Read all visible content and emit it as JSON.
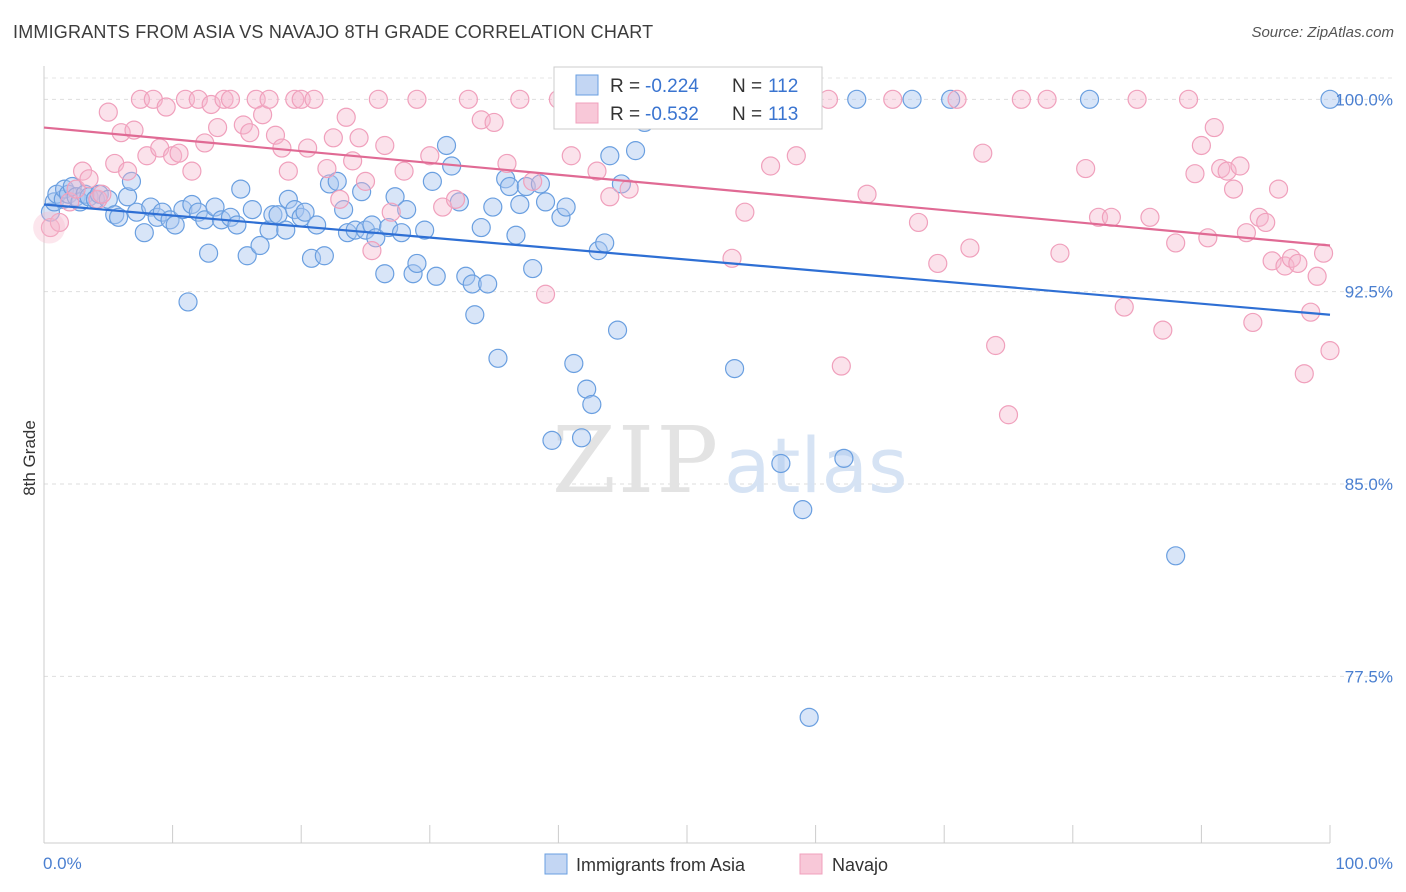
{
  "title": "IMMIGRANTS FROM ASIA VS NAVAJO 8TH GRADE CORRELATION CHART",
  "source": "Source: ZipAtlas.com",
  "watermark": {
    "zip": "ZIP",
    "atlas": "atlas"
  },
  "chart_data": {
    "type": "scatter",
    "xlabel": "",
    "ylabel": "8th Grade",
    "xlim": [
      0,
      100
    ],
    "ylim": [
      71.0,
      101.3
    ],
    "x_tick_labels": [
      "0.0%",
      "100.0%"
    ],
    "y_ticks": [
      {
        "value": 100.0,
        "label": "100.0%"
      },
      {
        "value": 92.5,
        "label": "92.5%"
      },
      {
        "value": 85.0,
        "label": "85.0%"
      },
      {
        "value": 77.5,
        "label": "77.5%"
      }
    ],
    "grid": "horizontal dashed",
    "legend_position": "bottom-center",
    "series": [
      {
        "name": "Immigrants from Asia",
        "color": "#6a9fe0",
        "line_color": "#2e6fd4",
        "r_label": "R = ",
        "r_value": "-0.224",
        "n_label": "N = ",
        "n_value": "112",
        "trend": {
          "x": [
            0,
            100
          ],
          "y": [
            95.9,
            91.6
          ]
        },
        "points": [
          [
            0.5,
            95.6
          ],
          [
            0.8,
            96.0
          ],
          [
            1.0,
            96.3
          ],
          [
            1.5,
            96.1
          ],
          [
            1.6,
            96.5
          ],
          [
            1.9,
            96.3
          ],
          [
            2.2,
            96.6
          ],
          [
            2.5,
            96.2
          ],
          [
            2.8,
            96.0
          ],
          [
            3.2,
            96.3
          ],
          [
            3.5,
            96.2
          ],
          [
            4.0,
            96.1
          ],
          [
            4.3,
            96.3
          ],
          [
            5.0,
            96.1
          ],
          [
            5.5,
            95.5
          ],
          [
            5.8,
            95.4
          ],
          [
            6.5,
            96.2
          ],
          [
            6.8,
            96.8
          ],
          [
            7.2,
            95.6
          ],
          [
            7.8,
            94.8
          ],
          [
            8.3,
            95.8
          ],
          [
            8.8,
            95.4
          ],
          [
            9.2,
            95.6
          ],
          [
            9.8,
            95.3
          ],
          [
            10.2,
            95.1
          ],
          [
            10.8,
            95.7
          ],
          [
            11.2,
            92.1
          ],
          [
            11.5,
            95.9
          ],
          [
            12.0,
            95.6
          ],
          [
            12.5,
            95.3
          ],
          [
            12.8,
            94.0
          ],
          [
            13.3,
            95.8
          ],
          [
            13.8,
            95.3
          ],
          [
            14.5,
            95.4
          ],
          [
            15.0,
            95.1
          ],
          [
            15.3,
            96.5
          ],
          [
            15.8,
            93.9
          ],
          [
            16.2,
            95.7
          ],
          [
            16.8,
            94.3
          ],
          [
            17.5,
            94.9
          ],
          [
            17.8,
            95.5
          ],
          [
            18.2,
            95.5
          ],
          [
            18.8,
            94.9
          ],
          [
            19.0,
            96.1
          ],
          [
            19.5,
            95.7
          ],
          [
            20.0,
            95.4
          ],
          [
            20.3,
            95.6
          ],
          [
            20.8,
            93.8
          ],
          [
            21.2,
            95.1
          ],
          [
            21.8,
            93.9
          ],
          [
            22.2,
            96.7
          ],
          [
            22.8,
            96.8
          ],
          [
            23.3,
            95.7
          ],
          [
            23.6,
            94.8
          ],
          [
            24.2,
            94.9
          ],
          [
            24.7,
            96.4
          ],
          [
            25.0,
            94.9
          ],
          [
            25.5,
            95.1
          ],
          [
            25.8,
            94.6
          ],
          [
            26.5,
            93.2
          ],
          [
            26.8,
            95.0
          ],
          [
            27.3,
            96.2
          ],
          [
            27.8,
            94.8
          ],
          [
            28.2,
            95.7
          ],
          [
            28.7,
            93.2
          ],
          [
            29.0,
            93.6
          ],
          [
            29.6,
            94.9
          ],
          [
            30.2,
            96.8
          ],
          [
            30.5,
            93.1
          ],
          [
            31.3,
            98.2
          ],
          [
            31.7,
            97.4
          ],
          [
            32.3,
            96.0
          ],
          [
            32.8,
            93.1
          ],
          [
            33.3,
            92.8
          ],
          [
            33.5,
            91.6
          ],
          [
            34.0,
            95.0
          ],
          [
            34.5,
            92.8
          ],
          [
            34.9,
            95.8
          ],
          [
            35.3,
            89.9
          ],
          [
            35.9,
            96.9
          ],
          [
            36.2,
            96.6
          ],
          [
            36.7,
            94.7
          ],
          [
            37.0,
            95.9
          ],
          [
            37.5,
            96.6
          ],
          [
            38.0,
            93.4
          ],
          [
            38.6,
            96.7
          ],
          [
            39.0,
            96.0
          ],
          [
            39.5,
            86.7
          ],
          [
            40.2,
            95.4
          ],
          [
            40.6,
            95.8
          ],
          [
            41.2,
            89.7
          ],
          [
            41.8,
            86.8
          ],
          [
            42.2,
            88.7
          ],
          [
            42.6,
            88.1
          ],
          [
            43.1,
            94.1
          ],
          [
            43.6,
            94.4
          ],
          [
            44.0,
            97.8
          ],
          [
            44.6,
            91.0
          ],
          [
            44.9,
            96.7
          ],
          [
            46.0,
            98.0
          ],
          [
            46.7,
            99.1
          ],
          [
            53.7,
            89.5
          ],
          [
            54.0,
            100.0
          ],
          [
            57.3,
            85.8
          ],
          [
            59.0,
            84.0
          ],
          [
            59.5,
            75.9
          ],
          [
            62.2,
            86.0
          ],
          [
            63.2,
            100.0
          ],
          [
            67.5,
            100.0
          ],
          [
            70.5,
            100.0
          ],
          [
            81.3,
            100.0
          ],
          [
            88.0,
            82.2
          ],
          [
            100.0,
            100.0
          ],
          [
            56.0,
            100.0
          ]
        ]
      },
      {
        "name": "Navajo",
        "color": "#f0a0bc",
        "line_color": "#e06a94",
        "r_label": "R = ",
        "r_value": "-0.532",
        "n_label": "N = ",
        "n_value": "113",
        "trend": {
          "x": [
            0,
            100
          ],
          "y": [
            98.9,
            94.3
          ]
        },
        "points": [
          [
            0.5,
            95.0
          ],
          [
            1.2,
            95.2
          ],
          [
            2.0,
            96.0
          ],
          [
            2.5,
            96.5
          ],
          [
            3.0,
            97.2
          ],
          [
            3.5,
            96.9
          ],
          [
            4.2,
            96.1
          ],
          [
            4.5,
            96.3
          ],
          [
            5.0,
            99.5
          ],
          [
            5.5,
            97.5
          ],
          [
            6.0,
            98.7
          ],
          [
            6.5,
            97.2
          ],
          [
            7.0,
            98.8
          ],
          [
            7.5,
            100.0
          ],
          [
            8.0,
            97.8
          ],
          [
            8.5,
            100.0
          ],
          [
            9.0,
            98.1
          ],
          [
            9.5,
            99.7
          ],
          [
            10.0,
            97.8
          ],
          [
            10.5,
            97.9
          ],
          [
            11.0,
            100.0
          ],
          [
            11.5,
            97.2
          ],
          [
            12.0,
            100.0
          ],
          [
            12.5,
            98.3
          ],
          [
            13.0,
            99.8
          ],
          [
            13.5,
            98.9
          ],
          [
            14.0,
            100.0
          ],
          [
            14.5,
            100.0
          ],
          [
            15.5,
            99.0
          ],
          [
            16.0,
            98.7
          ],
          [
            16.5,
            100.0
          ],
          [
            17.0,
            99.4
          ],
          [
            17.5,
            100.0
          ],
          [
            18.0,
            98.6
          ],
          [
            18.5,
            98.1
          ],
          [
            19.0,
            97.2
          ],
          [
            19.5,
            100.0
          ],
          [
            20.0,
            100.0
          ],
          [
            20.5,
            98.1
          ],
          [
            21.0,
            100.0
          ],
          [
            22.0,
            97.3
          ],
          [
            22.5,
            98.5
          ],
          [
            23.0,
            96.1
          ],
          [
            23.5,
            99.3
          ],
          [
            24.0,
            97.6
          ],
          [
            24.5,
            98.5
          ],
          [
            25.0,
            96.8
          ],
          [
            25.5,
            94.1
          ],
          [
            26.0,
            100.0
          ],
          [
            26.5,
            98.2
          ],
          [
            27.0,
            95.6
          ],
          [
            28.0,
            97.2
          ],
          [
            29.0,
            100.0
          ],
          [
            30.0,
            97.8
          ],
          [
            31.0,
            95.8
          ],
          [
            32.0,
            96.1
          ],
          [
            33.0,
            100.0
          ],
          [
            34.0,
            99.2
          ],
          [
            35.0,
            99.1
          ],
          [
            36.0,
            97.5
          ],
          [
            37.0,
            100.0
          ],
          [
            38.0,
            96.8
          ],
          [
            39.0,
            92.4
          ],
          [
            40.0,
            100.0
          ],
          [
            41.0,
            97.8
          ],
          [
            42.0,
            100.0
          ],
          [
            43.0,
            97.2
          ],
          [
            44.0,
            96.2
          ],
          [
            45.5,
            96.5
          ],
          [
            47.0,
            100.0
          ],
          [
            49.0,
            100.0
          ],
          [
            51.0,
            100.0
          ],
          [
            53.5,
            93.8
          ],
          [
            54.5,
            95.6
          ],
          [
            56.5,
            97.4
          ],
          [
            58.5,
            97.8
          ],
          [
            61.0,
            100.0
          ],
          [
            62.0,
            89.6
          ],
          [
            64.0,
            96.3
          ],
          [
            66.0,
            100.0
          ],
          [
            68.0,
            95.2
          ],
          [
            69.5,
            93.6
          ],
          [
            71.0,
            100.0
          ],
          [
            72.0,
            94.2
          ],
          [
            73.0,
            97.9
          ],
          [
            74.0,
            90.4
          ],
          [
            75.0,
            87.7
          ],
          [
            76.0,
            100.0
          ],
          [
            78.0,
            100.0
          ],
          [
            79.0,
            94.0
          ],
          [
            81.0,
            97.3
          ],
          [
            82.0,
            95.4
          ],
          [
            83.0,
            95.4
          ],
          [
            84.0,
            91.9
          ],
          [
            85.0,
            100.0
          ],
          [
            86.0,
            95.4
          ],
          [
            87.0,
            91.0
          ],
          [
            88.0,
            94.4
          ],
          [
            89.0,
            100.0
          ],
          [
            89.5,
            97.1
          ],
          [
            90.0,
            98.2
          ],
          [
            90.5,
            94.6
          ],
          [
            91.0,
            98.9
          ],
          [
            91.5,
            97.3
          ],
          [
            92.0,
            97.2
          ],
          [
            92.5,
            96.5
          ],
          [
            93.0,
            97.4
          ],
          [
            93.5,
            94.8
          ],
          [
            94.0,
            91.3
          ],
          [
            94.5,
            95.4
          ],
          [
            95.0,
            95.2
          ],
          [
            95.5,
            93.7
          ],
          [
            96.0,
            96.5
          ],
          [
            96.5,
            93.5
          ],
          [
            97.0,
            93.8
          ],
          [
            97.5,
            93.6
          ],
          [
            98.0,
            89.3
          ],
          [
            98.5,
            91.7
          ],
          [
            99.0,
            93.1
          ],
          [
            99.5,
            94.0
          ],
          [
            100.0,
            90.2
          ]
        ]
      }
    ]
  }
}
